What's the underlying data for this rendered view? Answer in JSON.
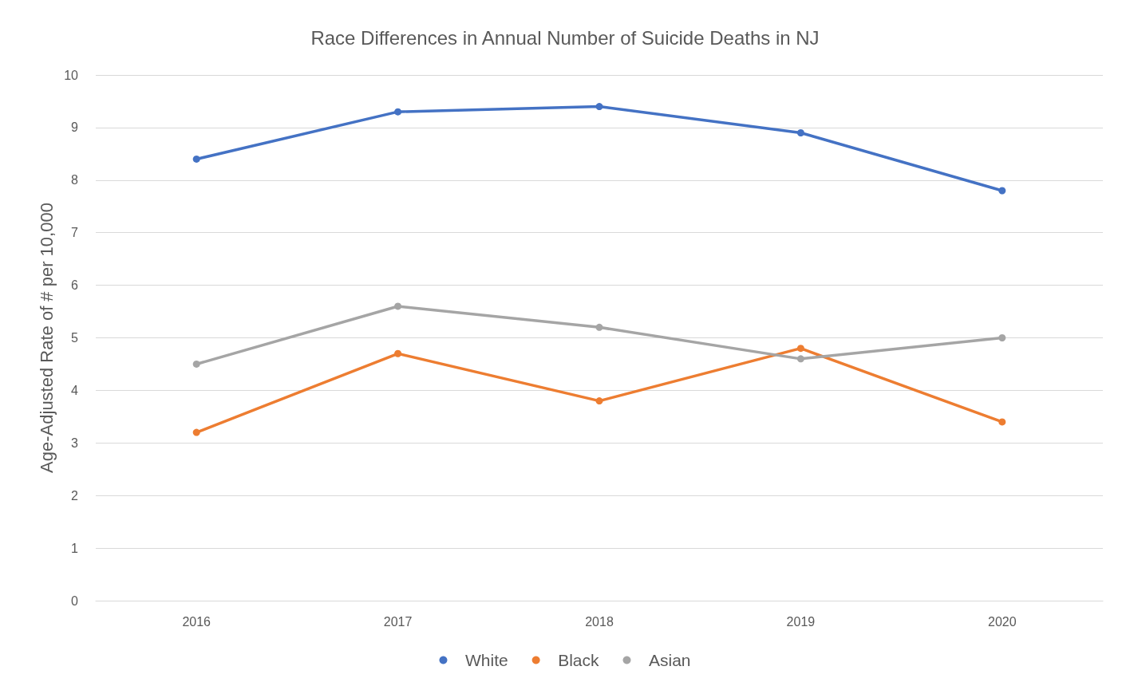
{
  "chart_data": {
    "type": "line",
    "title": "Race Differences in Annual Number of Suicide Deaths in NJ",
    "ylabel": "Age-Adjusted Rate of # per 10,000",
    "categories": [
      "2016",
      "2017",
      "2018",
      "2019",
      "2020"
    ],
    "series": [
      {
        "name": "White",
        "color": "#4472c4",
        "values": [
          8.4,
          9.3,
          9.4,
          8.9,
          7.8
        ]
      },
      {
        "name": "Black",
        "color": "#ed7d31",
        "values": [
          3.2,
          4.7,
          3.8,
          4.8,
          3.4
        ]
      },
      {
        "name": "Asian",
        "color": "#a5a5a5",
        "values": [
          4.5,
          5.6,
          5.2,
          4.6,
          5.0
        ]
      }
    ],
    "ylim": [
      0,
      10
    ],
    "yticks": [
      0,
      1,
      2,
      3,
      4,
      5,
      6,
      7,
      8,
      9,
      10
    ],
    "grid": "y",
    "legend": "bottom",
    "marker": "circle",
    "line_style": "solid"
  }
}
